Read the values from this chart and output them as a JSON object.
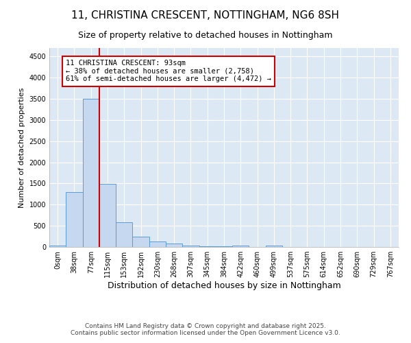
{
  "title": "11, CHRISTINA CRESCENT, NOTTINGHAM, NG6 8SH",
  "subtitle": "Size of property relative to detached houses in Nottingham",
  "xlabel": "Distribution of detached houses by size in Nottingham",
  "ylabel": "Number of detached properties",
  "bin_labels": [
    "0sqm",
    "38sqm",
    "77sqm",
    "115sqm",
    "153sqm",
    "192sqm",
    "230sqm",
    "268sqm",
    "307sqm",
    "345sqm",
    "384sqm",
    "422sqm",
    "460sqm",
    "499sqm",
    "537sqm",
    "575sqm",
    "614sqm",
    "652sqm",
    "690sqm",
    "729sqm",
    "767sqm"
  ],
  "bar_heights": [
    30,
    1290,
    3500,
    1490,
    590,
    245,
    125,
    80,
    40,
    20,
    10,
    25,
    5,
    40,
    0,
    0,
    0,
    0,
    0,
    0,
    0
  ],
  "bar_color": "#c5d8f0",
  "bar_edge_color": "#5b9bd5",
  "vline_x": 2.5,
  "vline_color": "#cc0000",
  "annotation_text": "11 CHRISTINA CRESCENT: 93sqm\n← 38% of detached houses are smaller (2,758)\n61% of semi-detached houses are larger (4,472) →",
  "annotation_box_color": "#ffffff",
  "annotation_box_edge": "#cc0000",
  "ylim": [
    0,
    4700
  ],
  "yticks": [
    0,
    500,
    1000,
    1500,
    2000,
    2500,
    3000,
    3500,
    4000,
    4500
  ],
  "bg_color": "#dde8f5",
  "fig_color": "#ffffff",
  "footer_line1": "Contains HM Land Registry data © Crown copyright and database right 2025.",
  "footer_line2": "Contains public sector information licensed under the Open Government Licence v3.0.",
  "title_fontsize": 11,
  "subtitle_fontsize": 9,
  "xlabel_fontsize": 9,
  "ylabel_fontsize": 8,
  "tick_fontsize": 7,
  "annot_fontsize": 7.5,
  "footer_fontsize": 6.5
}
